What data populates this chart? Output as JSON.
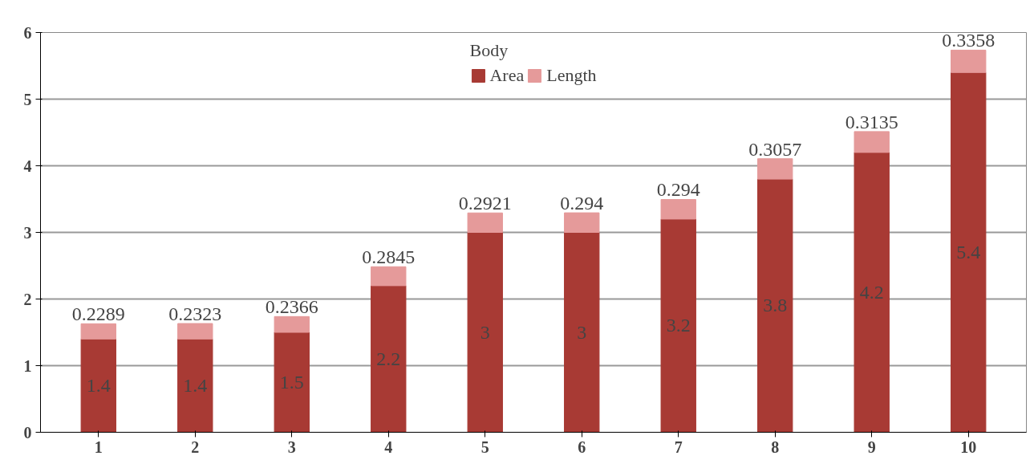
{
  "chart_data": {
    "type": "bar",
    "stacked": true,
    "legend_title": "Body",
    "legend": "top",
    "categories": [
      "1",
      "2",
      "3",
      "4",
      "5",
      "6",
      "7",
      "8",
      "9",
      "10"
    ],
    "series": [
      {
        "name": "Area",
        "color": "#a83a34",
        "values": [
          1.4,
          1.4,
          1.5,
          2.2,
          3,
          3,
          3.2,
          3.8,
          4.2,
          5.4
        ]
      },
      {
        "name": "Length",
        "color": "#e59a9a",
        "values": [
          0.2289,
          0.2323,
          0.2366,
          0.2845,
          0.2921,
          0.294,
          0.294,
          0.3057,
          0.3135,
          0.3358
        ]
      }
    ],
    "ylim": [
      0,
      6
    ],
    "yticks": [
      0,
      1,
      2,
      3,
      4,
      5,
      6
    ],
    "grid": "y",
    "data_labels": true
  }
}
